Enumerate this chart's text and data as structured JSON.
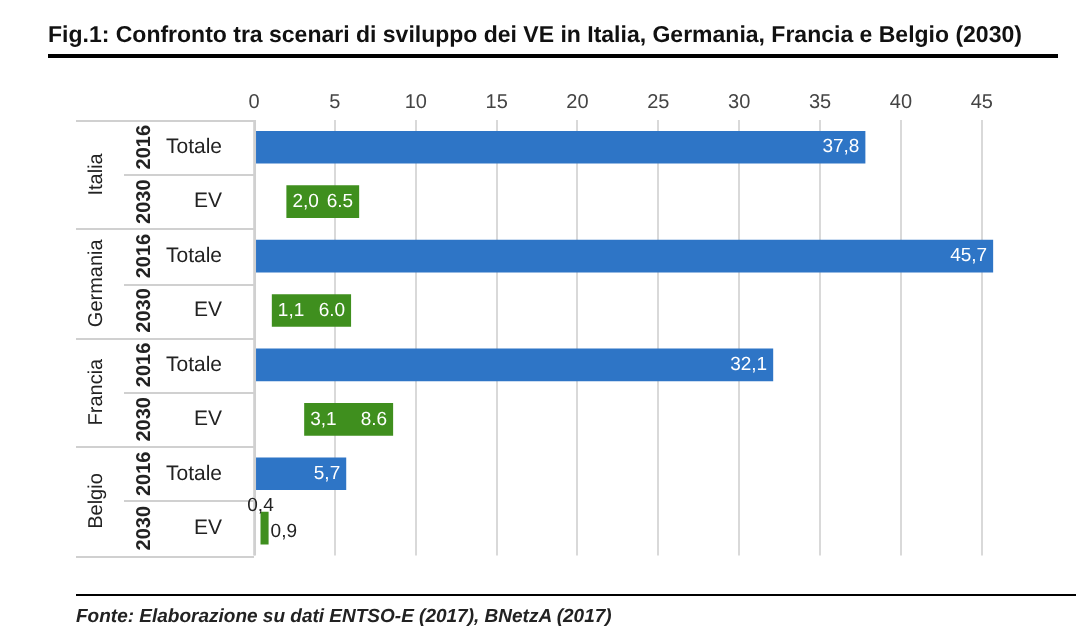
{
  "chart_data": {
    "type": "bar",
    "orientation": "horizontal",
    "title": "Fig.1: Confronto tra scenari di sviluppo dei VE in Italia, Germania, Francia e Belgio (2030)",
    "categories": [
      "Totale",
      "EV",
      "Totale",
      "EV",
      "Totale",
      "EV",
      "Totale",
      "EV"
    ],
    "series": [
      {
        "color": "#2e75c6",
        "values": [
          37.8,
          null,
          45.7,
          null,
          32.1,
          null,
          5.7,
          null
        ],
        "value_labels": [
          "37,8",
          null,
          "45,7",
          null,
          "32,1",
          null,
          "5,7",
          null
        ]
      },
      {
        "color": "#3f8f1e",
        "base": [
          null,
          2.0,
          null,
          1.1,
          null,
          3.1,
          null,
          0.4
        ],
        "values": [
          null,
          4.5,
          null,
          4.9,
          null,
          5.5,
          null,
          0.5
        ],
        "value_labels": [
          null,
          "6.5",
          null,
          "6.0",
          null,
          "8.6",
          null,
          "0,9"
        ]
      }
    ],
    "xlim": [
      0,
      46
    ],
    "xticks": [
      0,
      5,
      10,
      15,
      20,
      25,
      30,
      35,
      40,
      45
    ],
    "grid": "x",
    "annotations": [
      "Italia",
      "2016",
      "2030",
      "Germania",
      "2016",
      "2030",
      "Francia",
      "2016",
      "2030",
      "Belgio",
      "2016",
      "2030",
      {
        "text": "2,0",
        "x": 2.0
      },
      {
        "text": "1,1",
        "x": 1.1
      },
      {
        "text": "3,1",
        "x": 3.1
      },
      {
        "text": "0,4",
        "x": 0.4
      },
      "Fonte: Elaborazione su dati ENTSO-E (2017), BNetzA (2017)"
    ]
  }
}
